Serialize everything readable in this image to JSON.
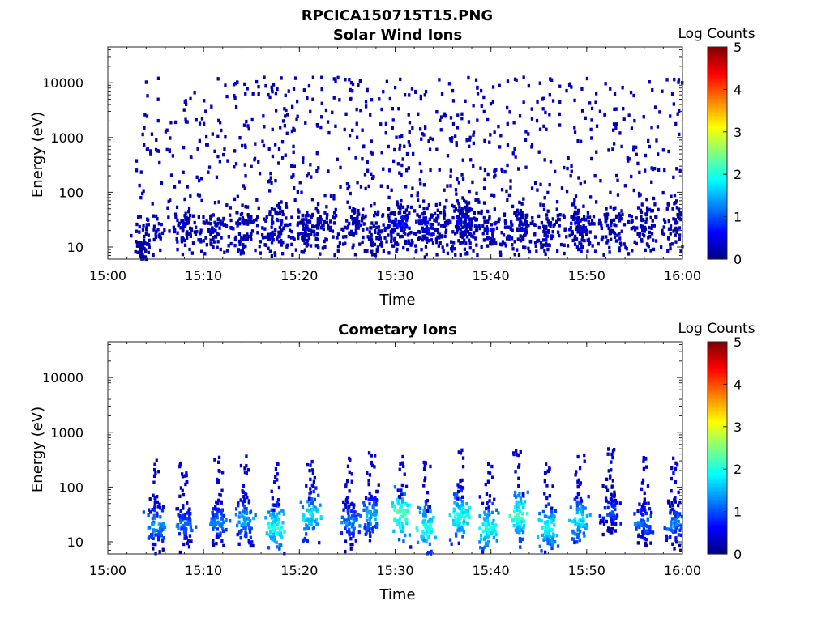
{
  "figure": {
    "title": "RPCICA150715T15.PNG"
  },
  "chart_data": [
    {
      "type": "heatmap",
      "title": "Solar Wind Ions",
      "xlabel": "Time",
      "ylabel": "Energy (eV)",
      "xlim": [
        "15:00",
        "16:00"
      ],
      "ylim": [
        6,
        45000
      ],
      "y_scale": "log",
      "x_ticks": [
        "15:00",
        "15:10",
        "15:20",
        "15:30",
        "15:40",
        "15:50",
        "16:00"
      ],
      "y_ticks": [
        "10",
        "100",
        "1000",
        "10000"
      ],
      "colorbar": {
        "label": "Log Counts",
        "range": [
          0,
          5
        ],
        "ticks": [
          "0",
          "1",
          "2",
          "3",
          "4",
          "5"
        ],
        "colormap": "jet"
      },
      "clusters": [
        {
          "t": 3.5,
          "e": 8,
          "v": 0.3
        },
        {
          "t": 4.0,
          "e": 8,
          "v": 0.3
        },
        {
          "t": 8.2,
          "e": 25,
          "v": 0.4
        },
        {
          "t": 11.0,
          "e": 20,
          "v": 0.4
        },
        {
          "t": 14.3,
          "e": 25,
          "v": 0.4
        },
        {
          "t": 17.3,
          "e": 15,
          "v": 0.5
        },
        {
          "t": 17.8,
          "e": 30,
          "v": 0.5
        },
        {
          "t": 20.5,
          "e": 18,
          "v": 0.4
        },
        {
          "t": 21.7,
          "e": 25,
          "v": 0.4
        },
        {
          "t": 26.0,
          "e": 25,
          "v": 0.4
        },
        {
          "t": 27.8,
          "e": 15,
          "v": 0.3
        },
        {
          "t": 29.5,
          "e": 25,
          "v": 0.5
        },
        {
          "t": 30.7,
          "e": 30,
          "v": 0.8
        },
        {
          "t": 31.0,
          "e": 25,
          "v": 0.7
        },
        {
          "t": 33.0,
          "e": 28,
          "v": 0.6
        },
        {
          "t": 33.5,
          "e": 20,
          "v": 0.6
        },
        {
          "t": 35.0,
          "e": 30,
          "v": 0.4
        },
        {
          "t": 36.8,
          "e": 35,
          "v": 0.6
        },
        {
          "t": 37.3,
          "e": 28,
          "v": 0.6
        },
        {
          "t": 38.0,
          "e": 40,
          "v": 0.4
        },
        {
          "t": 40.0,
          "e": 22,
          "v": 0.5
        },
        {
          "t": 43.0,
          "e": 30,
          "v": 0.6
        },
        {
          "t": 43.5,
          "e": 22,
          "v": 0.5
        },
        {
          "t": 46.0,
          "e": 15,
          "v": 0.5
        },
        {
          "t": 49.0,
          "e": 30,
          "v": 0.4
        },
        {
          "t": 49.5,
          "e": 20,
          "v": 0.4
        },
        {
          "t": 52.5,
          "e": 25,
          "v": 0.3
        },
        {
          "t": 56.0,
          "e": 25,
          "v": 0.3
        },
        {
          "t": 59.5,
          "e": 25,
          "v": 0.3
        }
      ]
    },
    {
      "type": "heatmap",
      "title": "Cometary Ions",
      "xlabel": "Time",
      "ylabel": "Energy (eV)",
      "xlim": [
        "15:00",
        "16:00"
      ],
      "ylim": [
        6,
        45000
      ],
      "y_scale": "log",
      "x_ticks": [
        "15:00",
        "15:10",
        "15:20",
        "15:30",
        "15:40",
        "15:50",
        "16:00"
      ],
      "y_ticks": [
        "10",
        "100",
        "1000",
        "10000"
      ],
      "colorbar": {
        "label": "Log Counts",
        "range": [
          0,
          5
        ],
        "ticks": [
          "0",
          "1",
          "2",
          "3",
          "4",
          "5"
        ],
        "colormap": "jet"
      },
      "clusters": [
        {
          "t": 5.0,
          "e": 20,
          "v": 1.4
        },
        {
          "t": 8.0,
          "e": 20,
          "v": 1.2
        },
        {
          "t": 11.5,
          "e": 22,
          "v": 1.3
        },
        {
          "t": 14.3,
          "e": 25,
          "v": 1.5
        },
        {
          "t": 17.5,
          "e": 18,
          "v": 2.0
        },
        {
          "t": 21.3,
          "e": 30,
          "v": 1.8
        },
        {
          "t": 25.3,
          "e": 22,
          "v": 1.3
        },
        {
          "t": 27.5,
          "e": 30,
          "v": 1.5
        },
        {
          "t": 30.7,
          "e": 32,
          "v": 2.3
        },
        {
          "t": 33.2,
          "e": 18,
          "v": 2.0
        },
        {
          "t": 36.8,
          "e": 30,
          "v": 2.0
        },
        {
          "t": 39.8,
          "e": 18,
          "v": 2.0
        },
        {
          "t": 42.9,
          "e": 30,
          "v": 2.2
        },
        {
          "t": 46.0,
          "e": 18,
          "v": 1.9
        },
        {
          "t": 49.2,
          "e": 25,
          "v": 1.8
        },
        {
          "t": 52.5,
          "e": 35,
          "v": 1.0
        },
        {
          "t": 56.0,
          "e": 22,
          "v": 1.2
        },
        {
          "t": 59.2,
          "e": 22,
          "v": 1.3
        }
      ]
    }
  ]
}
